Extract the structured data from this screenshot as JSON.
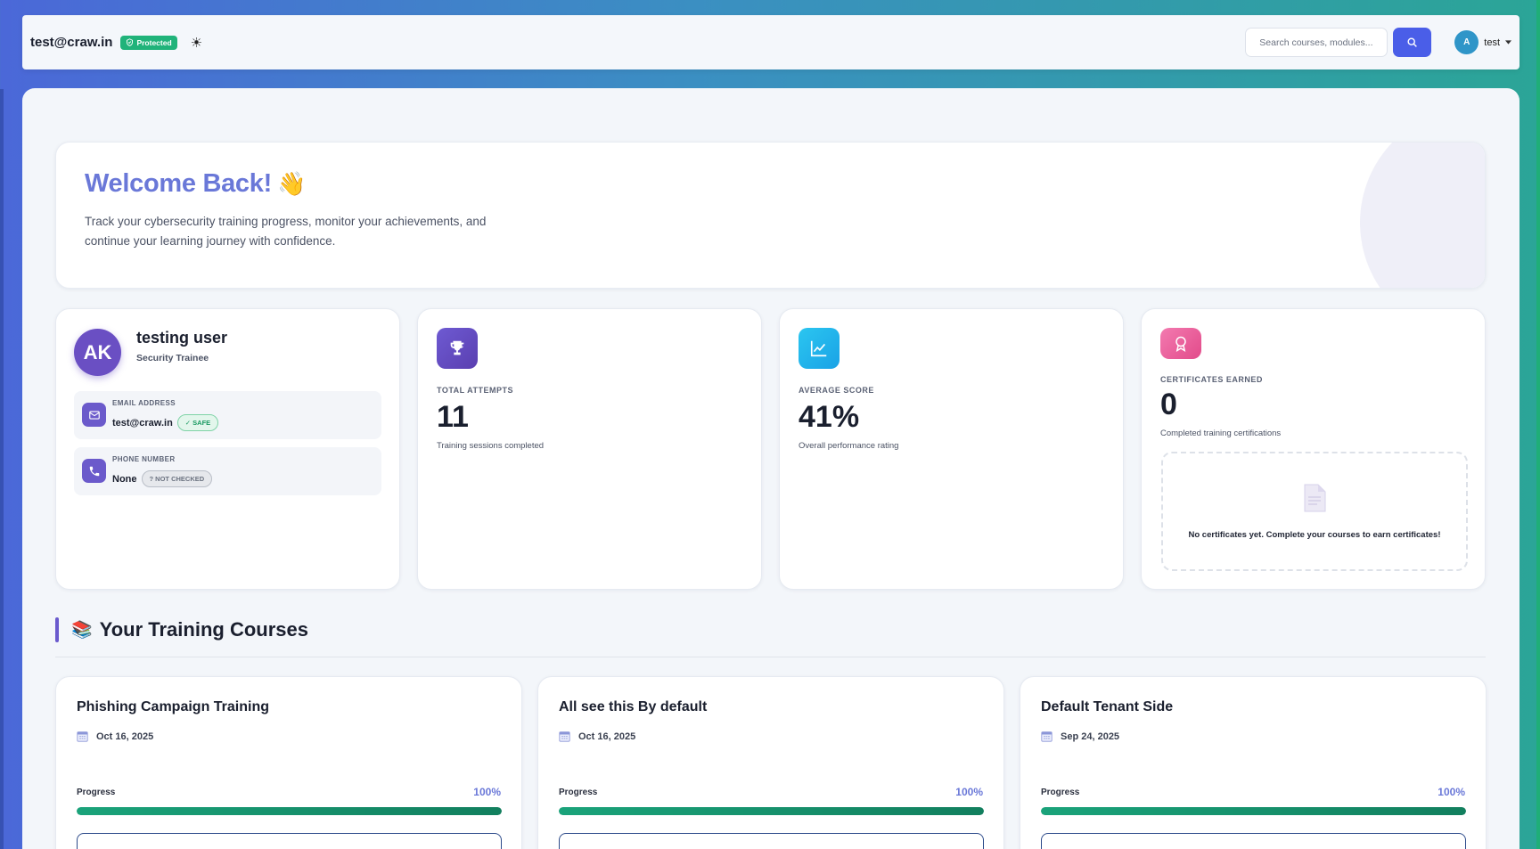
{
  "header": {
    "email": "test@craw.in",
    "protected_label": "Protected",
    "search_placeholder": "Search courses, modules...",
    "user_initial": "A",
    "user_name": "test"
  },
  "welcome": {
    "title": "Welcome Back!",
    "wave_emoji": "👋",
    "subtitle": "Track your cybersecurity training progress, monitor your achievements, and continue your learning journey with confidence."
  },
  "profile": {
    "initials": "AK",
    "name": "testing user",
    "role": "Security Trainee",
    "email_label": "EMAIL ADDRESS",
    "email_value": "test@craw.in",
    "email_status": "✓ SAFE",
    "phone_label": "PHONE NUMBER",
    "phone_value": "None",
    "phone_status": "? NOT CHECKED"
  },
  "stats": [
    {
      "label": "TOTAL ATTEMPTS",
      "value": "11",
      "desc": "Training sessions completed",
      "icon": "trophy-icon",
      "color": "#6a4fc3"
    },
    {
      "label": "AVERAGE SCORE",
      "value": "41%",
      "desc": "Overall performance rating",
      "icon": "chart-line-icon",
      "color": "#22b8ec"
    },
    {
      "label": "CERTIFICATES EARNED",
      "value": "0",
      "desc": "Completed training certifications",
      "icon": "award-icon",
      "color": "#f0609a"
    }
  ],
  "certificates_empty": "No certificates yet. Complete your courses to earn certificates!",
  "courses_section": {
    "emoji": "📚",
    "title": "Your Training Courses"
  },
  "courses": [
    {
      "title": "Phishing Campaign Training",
      "date": "Oct 16, 2025",
      "progress_label": "Progress",
      "progress_text": "100%",
      "progress": 1.0
    },
    {
      "title": "All see this By default",
      "date": "Oct 16, 2025",
      "progress_label": "Progress",
      "progress_text": "100%",
      "progress": 1.0
    },
    {
      "title": "Default Tenant Side",
      "date": "Sep 24, 2025",
      "progress_label": "Progress",
      "progress_text": "100%",
      "progress": 1.0
    }
  ]
}
